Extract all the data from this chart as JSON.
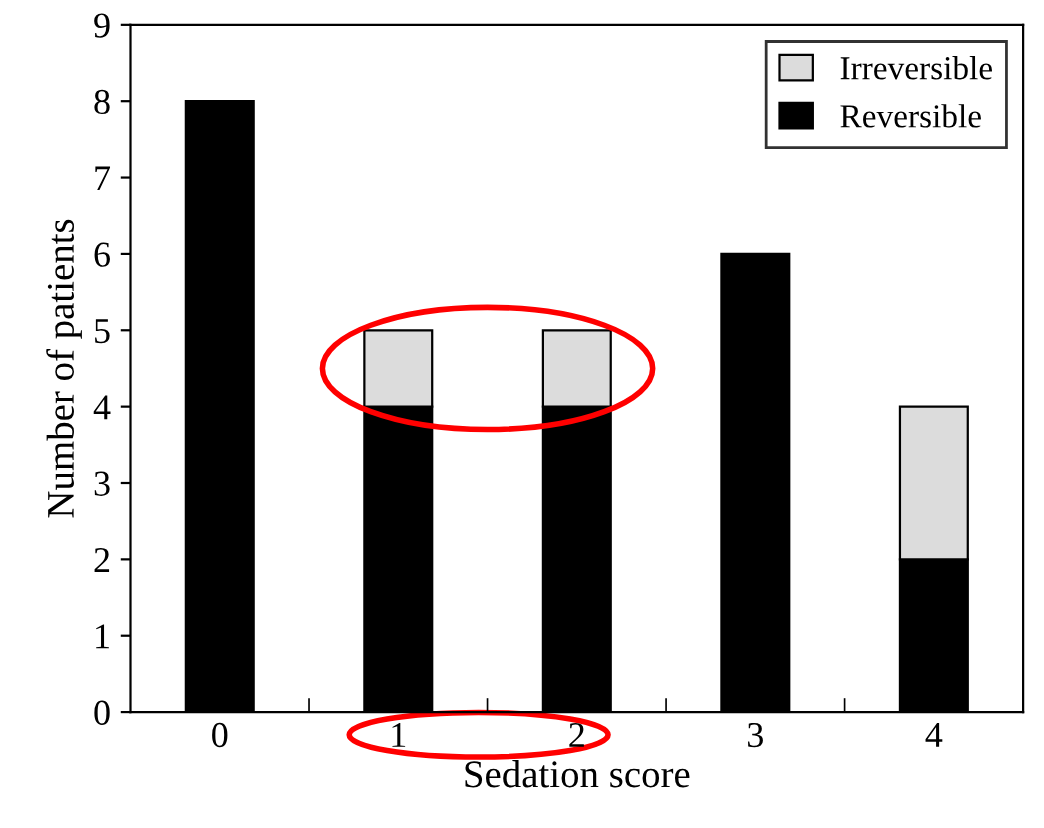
{
  "chart_data": {
    "type": "bar",
    "stacked": true,
    "xlabel": "Sedation score",
    "ylabel": "Number of patients",
    "categories": [
      "0",
      "1",
      "2",
      "3",
      "4"
    ],
    "series": [
      {
        "name": "Reversible",
        "color": "#000000",
        "values": [
          8,
          4,
          4,
          6,
          2
        ]
      },
      {
        "name": "Irreversible",
        "color": "#dcdcdc",
        "values": [
          null,
          1,
          1,
          null,
          2
        ]
      }
    ],
    "ylim": [
      0,
      9
    ],
    "yticks": [
      0,
      1,
      2,
      3,
      4,
      5,
      6,
      7,
      8,
      9
    ],
    "grid": false,
    "legend": "top right"
  }
}
